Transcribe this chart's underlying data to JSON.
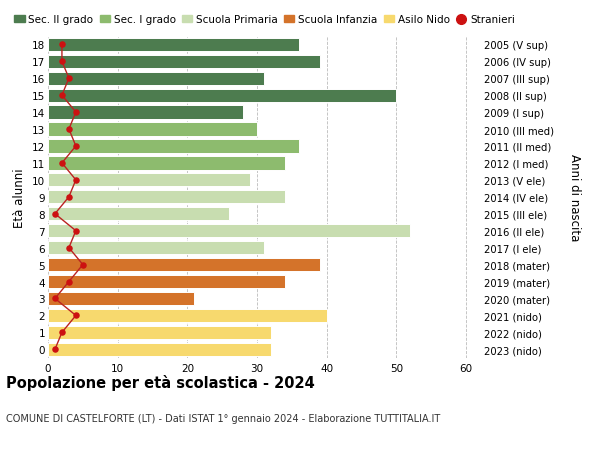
{
  "ages": [
    0,
    1,
    2,
    3,
    4,
    5,
    6,
    7,
    8,
    9,
    10,
    11,
    12,
    13,
    14,
    15,
    16,
    17,
    18
  ],
  "values": [
    32,
    32,
    40,
    21,
    34,
    39,
    31,
    52,
    26,
    34,
    29,
    34,
    36,
    30,
    28,
    50,
    31,
    39,
    36
  ],
  "stranieri": [
    1,
    2,
    4,
    1,
    3,
    5,
    3,
    4,
    1,
    3,
    4,
    2,
    4,
    3,
    4,
    2,
    3,
    2,
    2
  ],
  "bar_colors": [
    "#f7d96e",
    "#f7d96e",
    "#f7d96e",
    "#d4732a",
    "#d4732a",
    "#d4732a",
    "#c8ddb0",
    "#c8ddb0",
    "#c8ddb0",
    "#c8ddb0",
    "#c8ddb0",
    "#8dbb6e",
    "#8dbb6e",
    "#8dbb6e",
    "#4d7c4f",
    "#4d7c4f",
    "#4d7c4f",
    "#4d7c4f",
    "#4d7c4f"
  ],
  "right_labels": [
    "2023 (nido)",
    "2022 (nido)",
    "2021 (nido)",
    "2020 (mater)",
    "2019 (mater)",
    "2018 (mater)",
    "2017 (I ele)",
    "2016 (II ele)",
    "2015 (III ele)",
    "2014 (IV ele)",
    "2013 (V ele)",
    "2012 (I med)",
    "2011 (II med)",
    "2010 (III med)",
    "2009 (I sup)",
    "2008 (II sup)",
    "2007 (III sup)",
    "2006 (IV sup)",
    "2005 (V sup)"
  ],
  "ylabel": "Età alunni",
  "right_ylabel": "Anni di nascita",
  "title": "Popolazione per età scolastica - 2024",
  "subtitle": "COMUNE DI CASTELFORTE (LT) - Dati ISTAT 1° gennaio 2024 - Elaborazione TUTTITALIA.IT",
  "xlim": [
    0,
    62
  ],
  "xticks": [
    0,
    10,
    20,
    30,
    40,
    50,
    60
  ],
  "legend_labels": [
    "Sec. II grado",
    "Sec. I grado",
    "Scuola Primaria",
    "Scuola Infanzia",
    "Asilo Nido",
    "Stranieri"
  ],
  "legend_colors": [
    "#4d7c4f",
    "#8dbb6e",
    "#c8ddb0",
    "#d4732a",
    "#f7d96e",
    "#cc1111"
  ],
  "stranieri_color": "#cc1111",
  "stranieri_line_color": "#bb2222",
  "background_color": "#ffffff",
  "grid_color": "#bbbbbb"
}
